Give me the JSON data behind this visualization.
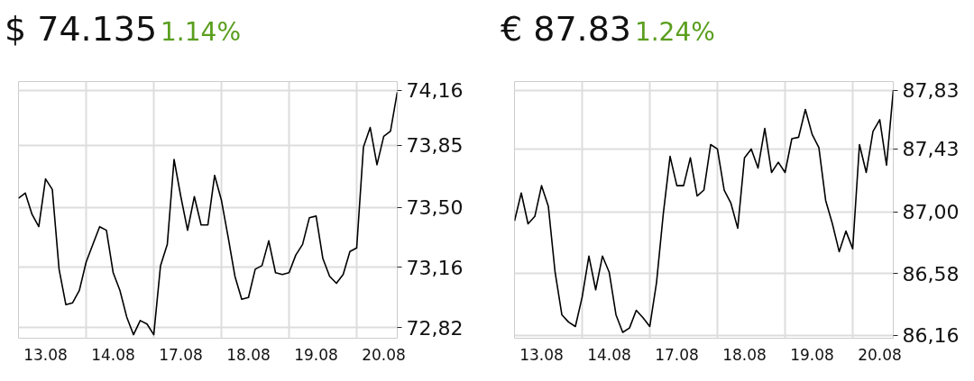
{
  "chart_data": [
    {
      "type": "line",
      "title": "$ 74.135",
      "subtitle": "1.14%",
      "grid": true,
      "marker": "none",
      "line_style": "solid",
      "categories": [
        null,
        null,
        null,
        null,
        "13.08",
        null,
        null,
        null,
        null,
        null,
        null,
        null,
        null,
        null,
        "14.08",
        null,
        null,
        null,
        null,
        null,
        null,
        null,
        null,
        null,
        "17.08",
        null,
        null,
        null,
        null,
        null,
        null,
        null,
        null,
        null,
        "18.08",
        null,
        null,
        null,
        null,
        null,
        null,
        null,
        null,
        null,
        "19.08",
        null,
        null,
        null,
        null,
        null,
        null,
        null,
        null,
        null,
        "20.08",
        null,
        null
      ],
      "ylim": [
        72.76,
        74.21
      ],
      "yticks": [
        {
          "value": 72.82,
          "label": "72,82"
        },
        {
          "value": 73.16,
          "label": "73,16"
        },
        {
          "value": 73.5,
          "label": "73,50"
        },
        {
          "value": 73.85,
          "label": "73,85"
        },
        {
          "value": 74.16,
          "label": "74,16"
        }
      ],
      "series": [
        {
          "color": "#000000",
          "values": [
            73.55,
            73.58,
            73.46,
            73.39,
            73.66,
            73.6,
            73.15,
            72.95,
            72.96,
            73.03,
            73.19,
            73.29,
            73.39,
            73.37,
            73.13,
            73.03,
            72.88,
            72.78,
            72.86,
            72.84,
            72.78,
            73.17,
            73.29,
            73.77,
            73.56,
            73.37,
            73.56,
            73.4,
            73.4,
            73.68,
            73.54,
            73.33,
            73.11,
            72.98,
            72.99,
            73.15,
            73.17,
            73.31,
            73.13,
            73.12,
            73.13,
            73.23,
            73.29,
            73.44,
            73.45,
            73.21,
            73.11,
            73.07,
            73.12,
            73.25,
            73.27,
            73.84,
            73.95,
            73.74,
            73.9,
            73.93,
            74.15
          ]
        }
      ]
    },
    {
      "type": "line",
      "title": "€ 87.83",
      "subtitle": "1.24%",
      "grid": true,
      "marker": "none",
      "line_style": "solid",
      "categories": [
        null,
        null,
        null,
        null,
        "13.08",
        null,
        null,
        null,
        null,
        null,
        null,
        null,
        null,
        null,
        "14.08",
        null,
        null,
        null,
        null,
        null,
        null,
        null,
        null,
        null,
        "17.08",
        null,
        null,
        null,
        null,
        null,
        null,
        null,
        null,
        null,
        "18.08",
        null,
        null,
        null,
        null,
        null,
        null,
        null,
        null,
        null,
        "19.08",
        null,
        null,
        null,
        null,
        null,
        null,
        null,
        null,
        null,
        "20.08",
        null,
        null
      ],
      "ylim": [
        86.14,
        87.89
      ],
      "yticks": [
        {
          "value": 86.16,
          "label": "86,16"
        },
        {
          "value": 86.58,
          "label": "86,58"
        },
        {
          "value": 87.0,
          "label": "87,00"
        },
        {
          "value": 87.43,
          "label": "87,43"
        },
        {
          "value": 87.83,
          "label": "87,83"
        }
      ],
      "series": [
        {
          "color": "#000000",
          "values": [
            86.94,
            87.13,
            86.92,
            86.97,
            87.18,
            87.04,
            86.59,
            86.3,
            86.25,
            86.22,
            86.42,
            86.7,
            86.47,
            86.7,
            86.59,
            86.3,
            86.18,
            86.21,
            86.33,
            86.28,
            86.22,
            86.52,
            86.99,
            87.38,
            87.18,
            87.18,
            87.37,
            87.11,
            87.15,
            87.46,
            87.43,
            87.15,
            87.06,
            86.89,
            87.37,
            87.43,
            87.3,
            87.57,
            87.27,
            87.34,
            87.27,
            87.5,
            87.51,
            87.7,
            87.53,
            87.44,
            87.08,
            86.92,
            86.73,
            86.87,
            86.75,
            87.46,
            87.27,
            87.55,
            87.63,
            87.32,
            87.83
          ]
        }
      ]
    }
  ]
}
